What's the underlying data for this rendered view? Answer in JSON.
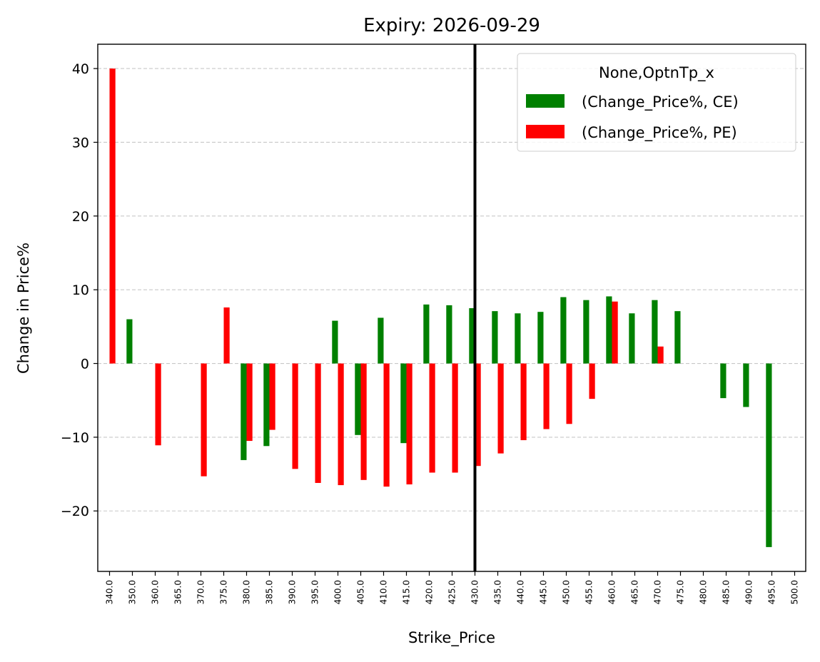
{
  "chart_data": {
    "type": "bar",
    "title": "Expiry: 2026-09-29",
    "xlabel": "Strike_Price",
    "ylabel": "Change in Price%",
    "categories": [
      "340.0",
      "350.0",
      "360.0",
      "365.0",
      "370.0",
      "375.0",
      "380.0",
      "385.0",
      "390.0",
      "395.0",
      "400.0",
      "405.0",
      "410.0",
      "415.0",
      "420.0",
      "425.0",
      "430.0",
      "435.0",
      "440.0",
      "445.0",
      "450.0",
      "455.0",
      "460.0",
      "465.0",
      "470.0",
      "475.0",
      "480.0",
      "485.0",
      "490.0",
      "495.0",
      "500.0"
    ],
    "series": [
      {
        "name": "(Change_Price%, CE)",
        "color": "#008000",
        "values": [
          null,
          6.0,
          null,
          null,
          null,
          null,
          -13.1,
          -11.2,
          null,
          null,
          5.8,
          -9.7,
          6.2,
          -10.8,
          8.0,
          7.9,
          7.5,
          7.1,
          6.8,
          7.0,
          9.0,
          8.6,
          9.1,
          6.8,
          8.6,
          7.1,
          null,
          -4.7,
          -5.9,
          -24.9,
          null
        ]
      },
      {
        "name": "(Change_Price%, PE)",
        "color": "#ff0000",
        "values": [
          40.0,
          null,
          -11.1,
          null,
          -15.3,
          7.6,
          -10.5,
          -9.0,
          -14.3,
          -16.2,
          -16.5,
          -15.8,
          -16.7,
          -16.4,
          -14.8,
          -14.8,
          -13.9,
          -12.2,
          -10.4,
          -8.9,
          -8.2,
          -4.8,
          8.4,
          null,
          2.3,
          null,
          null,
          null,
          null,
          null,
          null
        ]
      }
    ],
    "ylim": [
      -28.2,
      43.3
    ],
    "yticks": [
      -20,
      -10,
      0,
      10,
      20,
      30,
      40
    ],
    "ytick_labels": [
      "−20",
      "−10",
      "0",
      "10",
      "20",
      "30",
      "40"
    ],
    "grid": "y-dashed",
    "vline_at": "430.0",
    "vline_color": "#000000",
    "legend": {
      "title": "None,OptnTp_x",
      "position": "top-right"
    }
  }
}
